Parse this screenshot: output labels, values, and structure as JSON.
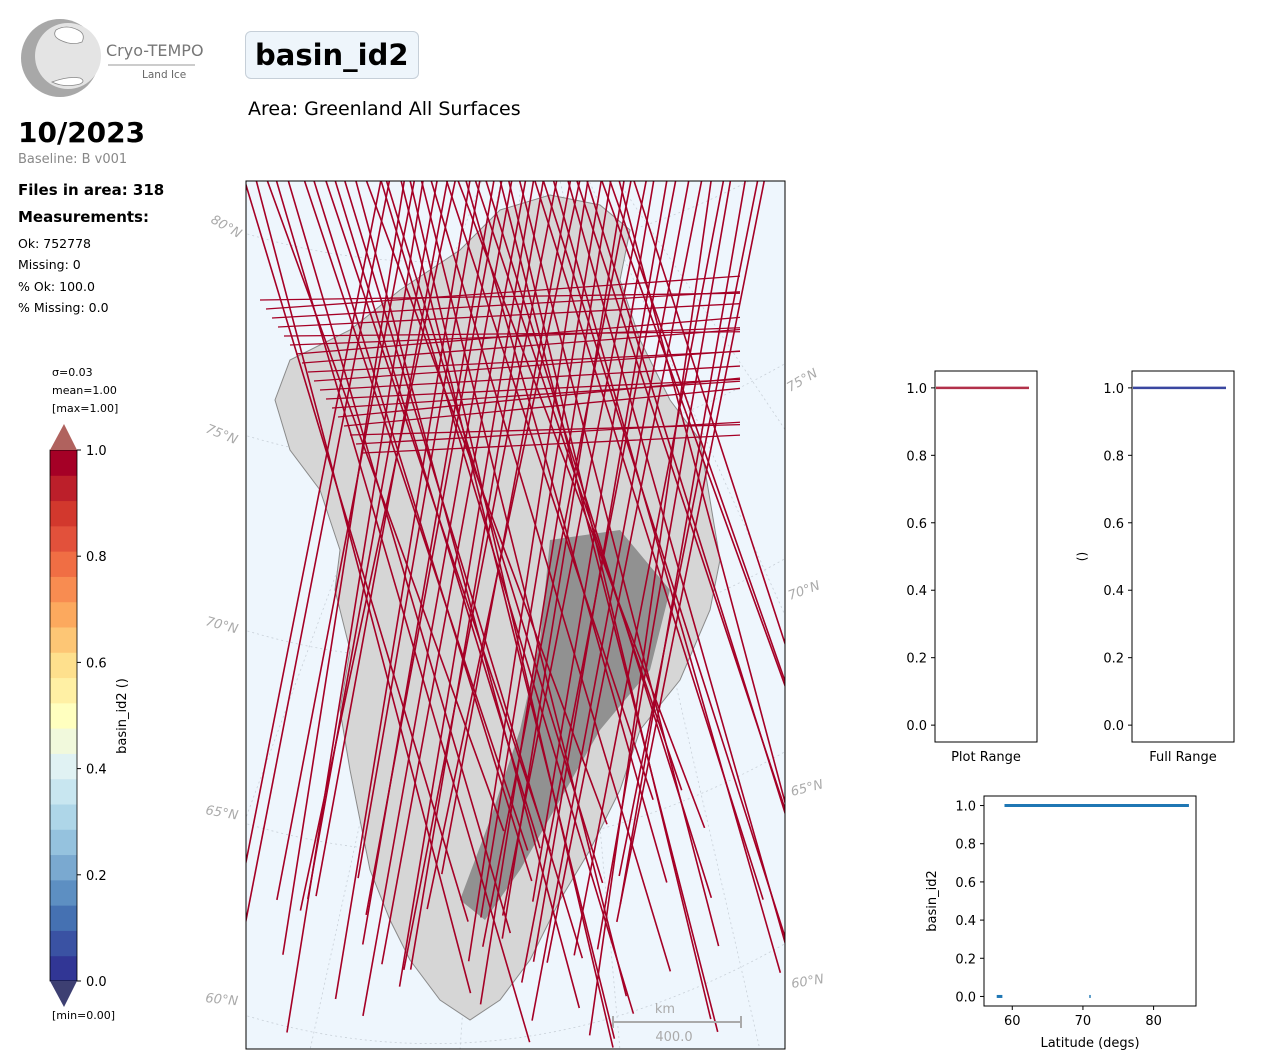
{
  "header": {
    "logo_name": "Cryo-TEMPO",
    "logo_sub": "Land Ice",
    "title": "basin_id2",
    "area": "Area: Greenland All Surfaces",
    "date": "10/2023",
    "baseline": "Baseline: B v001"
  },
  "summary": {
    "files": "Files in area: 318",
    "measurements_title": "Measurements:",
    "ok": "Ok: 752778",
    "missing": "Missing: 0",
    "pct_ok": "% Ok: 100.0",
    "pct_missing": "% Missing: 0.0"
  },
  "colorbar": {
    "sigma": "σ=0.03",
    "mean": "mean=1.00",
    "max": "[max=1.00]",
    "min": "[min=0.00]",
    "label": "basin_id2 ()",
    "ticks": [
      "1.0",
      "0.8",
      "0.6",
      "0.4",
      "0.2",
      "0.0"
    ],
    "colormap": [
      "#313695",
      "#3a52a3",
      "#4571b2",
      "#5d8fc2",
      "#7aa9d0",
      "#95c2de",
      "#aed6e8",
      "#c8e6f0",
      "#e0f2f3",
      "#f1f9dc",
      "#ffffbf",
      "#fff0a4",
      "#fee08d",
      "#fdc675",
      "#fca95e",
      "#f88c51",
      "#f06e44",
      "#e2513b",
      "#d2382d",
      "#bc1f2a",
      "#a50026"
    ]
  },
  "map": {
    "lat_labels_left": [
      "80°N",
      "75°N",
      "70°N",
      "65°N",
      "60°N"
    ],
    "lat_labels_right": [
      "75°N",
      "70°N",
      "65°N",
      "60°N"
    ],
    "scalebar_unit": "km",
    "scalebar_value": "400.0",
    "track_color": "#a50026",
    "ocean_color": "#eef6fd"
  },
  "chart_data": [
    {
      "type": "scatter",
      "title": "",
      "xlabel": "Plot Range",
      "ylabel": "",
      "yticks": [
        "0.0",
        "0.2",
        "0.4",
        "0.6",
        "0.8",
        "1.0"
      ],
      "ylim": [
        -0.05,
        1.05
      ],
      "x": [
        0,
        1
      ],
      "y": [
        1.0,
        1.0
      ],
      "color": "#b2314a"
    },
    {
      "type": "scatter",
      "title": "",
      "xlabel": "Full Range",
      "ylabel": "()",
      "yticks": [
        "0.0",
        "0.2",
        "0.4",
        "0.6",
        "0.8",
        "1.0"
      ],
      "ylim": [
        -0.05,
        1.05
      ],
      "x": [
        0,
        1
      ],
      "y": [
        1.0,
        1.0
      ],
      "color": "#3a47a0"
    },
    {
      "type": "scatter",
      "title": "",
      "xlabel": "Latitude (degs)",
      "ylabel": "basin_id2",
      "xticks": [
        "60",
        "70",
        "80"
      ],
      "yticks": [
        "0.0",
        "0.2",
        "0.4",
        "0.6",
        "0.8",
        "1.0"
      ],
      "xlim": [
        56,
        86
      ],
      "ylim": [
        -0.05,
        1.05
      ],
      "series": [
        {
          "x": [
            58.9,
            85.0
          ],
          "y": [
            1.0,
            1.0
          ]
        },
        {
          "x": [
            57.8,
            58.6
          ],
          "y": [
            0.0,
            0.0
          ]
        },
        {
          "x": [
            70.9,
            71.1
          ],
          "y": [
            0.0,
            0.0
          ]
        }
      ],
      "color": "#1f77b4"
    }
  ]
}
